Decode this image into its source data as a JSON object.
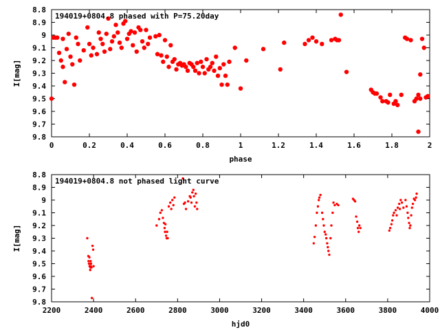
{
  "chart_data": [
    {
      "type": "scatter",
      "title": "194019+0804.8 phased with P=75.20day",
      "xlabel": "phase",
      "ylabel": "I[mag]",
      "xlim": [
        0,
        2
      ],
      "ylim": [
        9.8,
        8.8
      ],
      "y_inverted": true,
      "x_ticks": [
        "0",
        "0.2",
        "0.4",
        "0.6",
        "0.8",
        "1",
        "1.2",
        "1.4",
        "1.6",
        "1.8",
        "2"
      ],
      "x_tick_values": [
        0,
        0.2,
        0.4,
        0.6,
        0.8,
        1,
        1.2,
        1.4,
        1.6,
        1.8,
        2
      ],
      "y_ticks": [
        "8.8",
        "8.9",
        "9",
        "9.1",
        "9.2",
        "9.3",
        "9.4",
        "9.5",
        "9.6",
        "9.7",
        "9.8"
      ],
      "y_tick_values": [
        8.8,
        8.9,
        9.0,
        9.1,
        9.2,
        9.3,
        9.4,
        9.5,
        9.6,
        9.7,
        9.8
      ],
      "color": "#ff0000",
      "series": [
        {
          "x": [
            0.0,
            0.01,
            0.02,
            0.03,
            0.04,
            0.05,
            0.06,
            0.06,
            0.07,
            0.08,
            0.09,
            0.1,
            0.11,
            0.12,
            0.13,
            0.14,
            0.15,
            0.17,
            0.19,
            0.2,
            0.21,
            0.22,
            0.24,
            0.25,
            0.26,
            0.27,
            0.28,
            0.29,
            0.3,
            0.31,
            0.32,
            0.33,
            0.34,
            0.35,
            0.36,
            0.37,
            0.38,
            0.39,
            0.4,
            0.41,
            0.42,
            0.43,
            0.44,
            0.45,
            0.46,
            0.47,
            0.48,
            0.49,
            0.5,
            0.51,
            0.52,
            0.55,
            0.56,
            0.57,
            0.58,
            0.59,
            0.6,
            0.61,
            0.62,
            0.63,
            0.64,
            0.65,
            0.66,
            0.67,
            0.68,
            0.69,
            0.7,
            0.71,
            0.72,
            0.73,
            0.74,
            0.75,
            0.76,
            0.77,
            0.78,
            0.79,
            0.8,
            0.81,
            0.82,
            0.83,
            0.84,
            0.85,
            0.86,
            0.87,
            0.88,
            0.89,
            0.9,
            0.91,
            0.92,
            0.93,
            0.94,
            0.97,
            1.0,
            1.03,
            1.12,
            1.21,
            1.23,
            1.34,
            1.36,
            1.38,
            1.4,
            1.43,
            1.48,
            1.5,
            1.51,
            1.52,
            1.53,
            1.56,
            1.69,
            1.7,
            1.71,
            1.72,
            1.74,
            1.75,
            1.77,
            1.78,
            1.79,
            1.81,
            1.82,
            1.83,
            1.85,
            1.87,
            1.88,
            1.9,
            1.92,
            1.93,
            1.94,
            1.94,
            1.95,
            1.95,
            1.96,
            1.97,
            1.98,
            1.99
          ],
          "y": [
            9.5,
            9.02,
            9.02,
            9.02,
            9.14,
            9.2,
            9.25,
            9.03,
            9.37,
            9.11,
            8.99,
            9.17,
            9.23,
            9.39,
            9.02,
            9.07,
            9.2,
            9.12,
            8.94,
            9.07,
            9.16,
            9.1,
            9.15,
            8.98,
            9.03,
            9.07,
            9.13,
            8.99,
            8.87,
            9.11,
            9.05,
            9.01,
            8.92,
            8.98,
            9.06,
            9.1,
            8.91,
            8.89,
            9.03,
            8.99,
            8.97,
            9.08,
            8.98,
            9.13,
            8.94,
            8.96,
            9.05,
            9.1,
            8.96,
            9.07,
            9.02,
            9.01,
            9.15,
            9.0,
            9.16,
            9.21,
            9.04,
            9.17,
            9.25,
            9.08,
            9.21,
            9.19,
            9.27,
            9.23,
            9.22,
            9.24,
            9.23,
            9.25,
            9.28,
            9.22,
            9.23,
            9.25,
            9.28,
            9.22,
            9.3,
            9.21,
            9.25,
            9.3,
            9.19,
            9.27,
            9.25,
            9.22,
            9.28,
            9.17,
            9.32,
            9.26,
            9.39,
            9.23,
            9.32,
            9.39,
            9.21,
            9.1,
            9.42,
            9.2,
            9.11,
            9.27,
            9.06,
            9.07,
            9.04,
            9.02,
            9.05,
            9.07,
            9.04,
            9.03,
            9.04,
            9.04,
            8.84,
            9.29,
            9.43,
            9.45,
            9.46,
            9.46,
            9.49,
            9.52,
            9.52,
            9.53,
            9.47,
            9.54,
            9.52,
            9.55,
            9.47,
            9.02,
            9.03,
            9.04,
            9.52,
            9.5,
            9.47,
            9.76,
            9.31,
            9.5,
            9.03,
            9.1,
            9.49,
            9.48
          ]
        }
      ]
    },
    {
      "type": "scatter",
      "title": "194019+0804.8 not phased light curve",
      "xlabel": "hjd0",
      "ylabel": "I[mag]",
      "xlim": [
        2200,
        4000
      ],
      "ylim": [
        9.8,
        8.8
      ],
      "y_inverted": true,
      "x_ticks": [
        "2200",
        "2400",
        "2600",
        "2800",
        "3000",
        "3200",
        "3400",
        "3600",
        "3800",
        "4000"
      ],
      "x_tick_values": [
        2200,
        2400,
        2600,
        2800,
        3000,
        3200,
        3400,
        3600,
        3800,
        4000
      ],
      "y_ticks": [
        "8.8",
        "8.9",
        "9",
        "9.1",
        "9.2",
        "9.3",
        "9.4",
        "9.5",
        "9.6",
        "9.7",
        "9.8"
      ],
      "y_tick_values": [
        8.8,
        8.9,
        9.0,
        9.1,
        9.2,
        9.3,
        9.4,
        9.5,
        9.6,
        9.7,
        9.8
      ],
      "color": "#ff0000",
      "series": [
        {
          "x": [
            2370,
            2375,
            2376,
            2378,
            2380,
            2381,
            2382,
            2384,
            2385,
            2386,
            2387,
            2388,
            2390,
            2392,
            2395,
            2398,
            2400,
            2700,
            2712,
            2718,
            2725,
            2730,
            2735,
            2738,
            2740,
            2742,
            2745,
            2748,
            2750,
            2753,
            2758,
            2765,
            2770,
            2775,
            2780,
            2785,
            2825,
            2830,
            2835,
            2840,
            2850,
            2858,
            2862,
            2866,
            2870,
            2875,
            2878,
            2882,
            2886,
            2890,
            2893,
            3448,
            3452,
            3458,
            3463,
            3468,
            3472,
            3475,
            3480,
            3488,
            3492,
            3496,
            3500,
            3505,
            3508,
            3512,
            3515,
            3518,
            3522,
            3528,
            3532,
            3538,
            3542,
            3548,
            3558,
            3565,
            3635,
            3640,
            3645,
            3650,
            3655,
            3658,
            3662,
            3665,
            3670,
            3808,
            3812,
            3818,
            3822,
            3826,
            3830,
            3838,
            3843,
            3848,
            3855,
            3858,
            3862,
            3868,
            3875,
            3885,
            3890,
            3895,
            3898,
            3902,
            3905,
            3908,
            3912,
            3916,
            3920,
            3925,
            3930,
            3935,
            3938
          ],
          "y": [
            9.3,
            9.44,
            9.48,
            9.5,
            9.45,
            9.52,
            9.5,
            9.55,
            9.53,
            9.48,
            9.52,
            9.5,
            9.53,
            9.77,
            9.36,
            9.39,
            9.52,
            9.2,
            9.15,
            9.1,
            9.08,
            9.14,
            9.18,
            9.22,
            9.25,
            9.19,
            9.28,
            9.3,
            9.25,
            9.3,
            9.05,
            9.02,
            9.07,
            9.0,
            9.04,
            8.98,
            8.83,
            9.03,
            9.02,
            9.07,
            9.01,
            8.97,
            8.98,
            9.02,
            8.94,
            8.92,
            8.97,
            9.05,
            8.95,
            9.02,
            9.07,
            9.34,
            9.29,
            9.2,
            9.1,
            9.05,
            9.0,
            8.98,
            8.96,
            9.1,
            9.15,
            9.2,
            9.25,
            9.27,
            9.3,
            9.34,
            9.37,
            9.4,
            9.43,
            9.3,
            9.2,
            9.1,
            9.02,
            9.04,
            9.03,
            9.04,
            8.99,
            9.0,
            9.01,
            9.13,
            9.17,
            9.22,
            9.25,
            9.2,
            9.22,
            9.24,
            9.22,
            9.19,
            9.16,
            9.12,
            9.1,
            9.08,
            9.12,
            9.06,
            9.03,
            9.07,
            9.0,
            9.02,
            9.06,
            9.0,
            9.05,
            9.1,
            9.14,
            9.18,
            9.22,
            9.2,
            9.12,
            9.06,
            9.03,
            8.99,
            9.0,
            8.98,
            8.95
          ]
        }
      ]
    }
  ]
}
